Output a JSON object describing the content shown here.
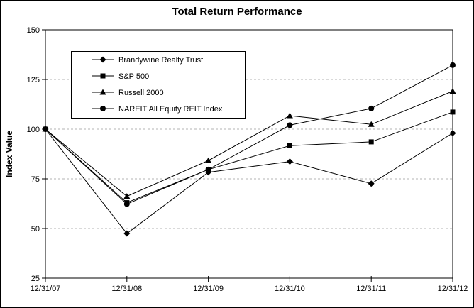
{
  "chart_data": {
    "type": "line",
    "title": "Total Return Performance",
    "ylabel": "Index Value",
    "xlabel": "",
    "x_categories": [
      "12/31/07",
      "12/31/08",
      "12/31/09",
      "12/31/10",
      "12/31/11",
      "12/31/12"
    ],
    "ylim": [
      25,
      150
    ],
    "y_ticks": [
      25,
      50,
      75,
      100,
      125,
      150
    ],
    "grid": "horizontal dashed",
    "legend_position": "inside top-left",
    "series": [
      {
        "name": "Brandywine Realty Trust",
        "marker": "diamond",
        "values": [
          100,
          47.5,
          78.3,
          83.7,
          72.6,
          98.0
        ]
      },
      {
        "name": "S&P 500",
        "marker": "square",
        "values": [
          100,
          63.0,
          79.7,
          91.7,
          93.6,
          108.6
        ]
      },
      {
        "name": "Russell 2000",
        "marker": "triangle",
        "values": [
          100,
          66.2,
          84.2,
          106.8,
          102.4,
          119.1
        ]
      },
      {
        "name": "NAREIT All Equity REIT Index",
        "marker": "circle",
        "values": [
          100,
          62.3,
          79.7,
          102.0,
          110.4,
          132.2
        ]
      }
    ],
    "colors": {
      "series": "#000000",
      "grid": "#b3b3b3",
      "background": "#ffffff",
      "border": "#000000",
      "text": "#000000"
    }
  }
}
